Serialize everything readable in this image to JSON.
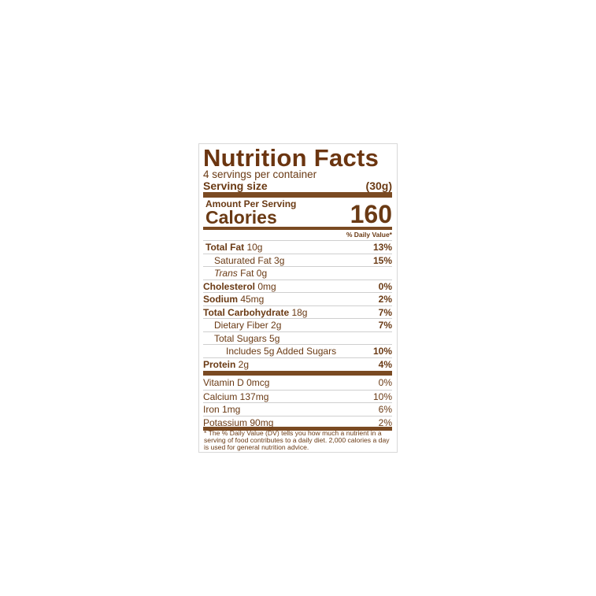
{
  "title": "Nutrition Facts",
  "servings": "4 servings per container",
  "serving_size_label": "Serving size",
  "serving_size_value": "(30g)",
  "amount_per_serving": "Amount Per Serving",
  "calories_label": "Calories",
  "calories_value": "160",
  "daily_value_header": "% Daily Value*",
  "nutrients": [
    {
      "bold": "Total Fat",
      "rest": " 10g",
      "dv": "13%",
      "indent": 0
    },
    {
      "bold": "",
      "rest": "Saturated Fat 3g",
      "dv": "15%",
      "indent": 1
    },
    {
      "bold": "",
      "italic": "Trans",
      "rest": " Fat 0g",
      "dv": "",
      "indent": 1
    },
    {
      "bold": "Cholesterol",
      "rest": " 0mg",
      "dv": "0%",
      "indent": 0
    },
    {
      "bold": "Sodium",
      "rest": " 45mg",
      "dv": "2%",
      "indent": 0
    },
    {
      "bold": "Total Carbohydrate",
      "rest": " 18g",
      "dv": "7%",
      "indent": 0
    },
    {
      "bold": "",
      "rest": "Dietary Fiber 2g",
      "dv": "7%",
      "indent": 1
    },
    {
      "bold": "",
      "rest": "Total Sugars 5g",
      "dv": "",
      "indent": 1
    },
    {
      "bold": "",
      "rest": "Includes 5g Added Sugars",
      "dv": "10%",
      "indent": 2
    },
    {
      "bold": "Protein",
      "rest": " 2g",
      "dv": "4%",
      "indent": 0
    }
  ],
  "vitamins": [
    {
      "name": "Vitamin D 0mcg",
      "dv": "0%"
    },
    {
      "name": "Calcium 137mg",
      "dv": "10%"
    },
    {
      "name": "Iron 1mg",
      "dv": "6%"
    },
    {
      "name": "Potassium 90mg",
      "dv": "2%"
    }
  ],
  "footnote": "* The % Daily Value (DV) tells you how much a nutrient in a serving of food contributes to a daily diet. 2,000 calories a day is used for general nutrition advice."
}
